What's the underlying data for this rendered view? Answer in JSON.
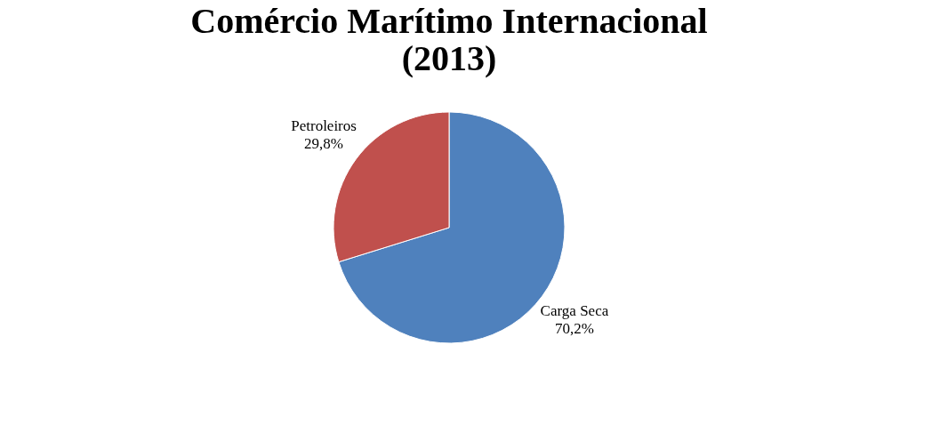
{
  "chart_data": {
    "type": "pie",
    "title": "Comércio Marítimo Internacional (2013)",
    "categories": [
      "Carga Seca",
      "Petroleiros"
    ],
    "values": [
      70.2,
      29.8
    ],
    "colors": [
      "#4f81bd",
      "#c0504d"
    ],
    "value_labels": [
      "70,2%",
      "29,8%"
    ],
    "legend": false
  }
}
